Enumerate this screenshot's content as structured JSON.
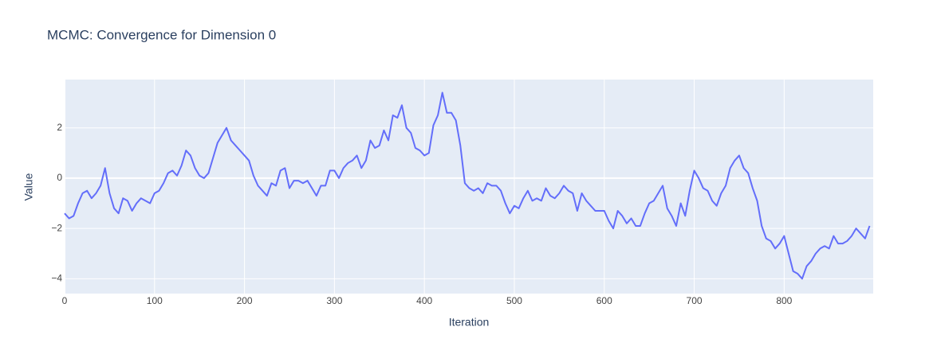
{
  "chart_data": {
    "type": "line",
    "title": "MCMC: Convergence for Dimension 0",
    "xlabel": "Iteration",
    "ylabel": "Value",
    "x": [
      0,
      5,
      10,
      15,
      20,
      25,
      30,
      35,
      40,
      45,
      50,
      55,
      60,
      65,
      70,
      75,
      80,
      85,
      90,
      95,
      100,
      105,
      110,
      115,
      120,
      125,
      130,
      135,
      140,
      145,
      150,
      155,
      160,
      165,
      170,
      175,
      180,
      185,
      190,
      195,
      200,
      205,
      210,
      215,
      220,
      225,
      230,
      235,
      240,
      245,
      250,
      255,
      260,
      265,
      270,
      275,
      280,
      285,
      290,
      295,
      300,
      305,
      310,
      315,
      320,
      325,
      330,
      335,
      340,
      345,
      350,
      355,
      360,
      365,
      370,
      375,
      380,
      385,
      390,
      395,
      400,
      405,
      410,
      415,
      420,
      425,
      430,
      435,
      440,
      445,
      450,
      455,
      460,
      465,
      470,
      475,
      480,
      485,
      490,
      495,
      500,
      505,
      510,
      515,
      520,
      525,
      530,
      535,
      540,
      545,
      550,
      555,
      560,
      565,
      570,
      575,
      580,
      585,
      590,
      595,
      600,
      605,
      610,
      615,
      620,
      625,
      630,
      635,
      640,
      645,
      650,
      655,
      660,
      665,
      670,
      675,
      680,
      685,
      690,
      695,
      700,
      705,
      710,
      715,
      720,
      725,
      730,
      735,
      740,
      745,
      750,
      755,
      760,
      765,
      770,
      775,
      780,
      785,
      790,
      795,
      800,
      805,
      810,
      815,
      820,
      825,
      830,
      835,
      840,
      845,
      850,
      855,
      860,
      865,
      870,
      875,
      880,
      885,
      890,
      895
    ],
    "series": [
      {
        "color": "#636efa",
        "values": [
          -1.4,
          -1.6,
          -1.5,
          -1.0,
          -0.6,
          -0.5,
          -0.8,
          -0.6,
          -0.3,
          0.4,
          -0.6,
          -1.2,
          -1.4,
          -0.8,
          -0.9,
          -1.3,
          -1.0,
          -0.8,
          -0.9,
          -1.0,
          -0.6,
          -0.5,
          -0.2,
          0.2,
          0.3,
          0.1,
          0.5,
          1.1,
          0.9,
          0.4,
          0.1,
          0.0,
          0.2,
          0.8,
          1.4,
          1.7,
          2.0,
          1.5,
          1.3,
          1.1,
          0.9,
          0.7,
          0.1,
          -0.3,
          -0.5,
          -0.7,
          -0.2,
          -0.3,
          0.3,
          0.4,
          -0.4,
          -0.1,
          -0.1,
          -0.2,
          -0.1,
          -0.4,
          -0.7,
          -0.3,
          -0.3,
          0.3,
          0.3,
          0.0,
          0.4,
          0.6,
          0.7,
          0.9,
          0.4,
          0.7,
          1.5,
          1.2,
          1.3,
          1.9,
          1.5,
          2.5,
          2.4,
          2.9,
          2.0,
          1.8,
          1.2,
          1.1,
          0.9,
          1.0,
          2.1,
          2.5,
          3.4,
          2.6,
          2.6,
          2.3,
          1.3,
          -0.2,
          -0.4,
          -0.5,
          -0.4,
          -0.6,
          -0.2,
          -0.3,
          -0.3,
          -0.5,
          -1.0,
          -1.4,
          -1.1,
          -1.2,
          -0.8,
          -0.5,
          -0.9,
          -0.8,
          -0.9,
          -0.4,
          -0.7,
          -0.8,
          -0.6,
          -0.3,
          -0.5,
          -0.6,
          -1.3,
          -0.6,
          -0.9,
          -1.1,
          -1.3,
          -1.3,
          -1.3,
          -1.7,
          -2.0,
          -1.3,
          -1.5,
          -1.8,
          -1.6,
          -1.9,
          -1.9,
          -1.4,
          -1.0,
          -0.9,
          -0.6,
          -0.3,
          -1.2,
          -1.5,
          -1.9,
          -1.0,
          -1.5,
          -0.5,
          0.3,
          0.0,
          -0.4,
          -0.5,
          -0.9,
          -1.1,
          -0.6,
          -0.3,
          0.4,
          0.7,
          0.9,
          0.4,
          0.2,
          -0.4,
          -0.9,
          -1.9,
          -2.4,
          -2.5,
          -2.8,
          -2.6,
          -2.3,
          -3.0,
          -3.7,
          -3.8,
          -4.0,
          -3.5,
          -3.3,
          -3.0,
          -2.8,
          -2.7,
          -2.8,
          -2.3,
          -2.6,
          -2.6,
          -2.5,
          -2.3,
          -2.0,
          -2.2,
          -2.4,
          -1.9
        ]
      }
    ],
    "xlim": [
      0,
      899
    ],
    "xticks": [
      0,
      100,
      200,
      300,
      400,
      500,
      600,
      700,
      800
    ],
    "ylim": [
      -4.59,
      3.92
    ],
    "yticks": [
      {
        "value": -4,
        "label": "−4"
      },
      {
        "value": -2,
        "label": "−2"
      },
      0,
      2
    ],
    "grid": true
  }
}
